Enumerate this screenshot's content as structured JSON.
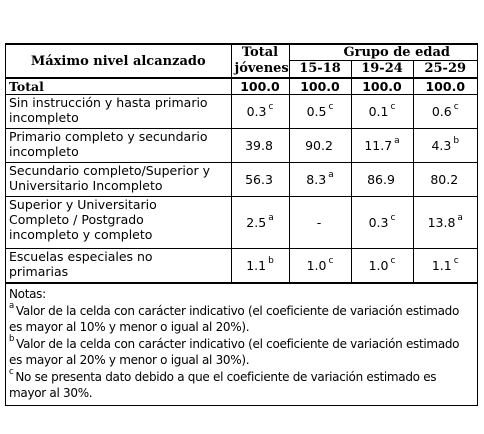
{
  "header": {
    "col_level": "Máximo nivel alcanzado",
    "col_total": "Total jóvenes",
    "col_group": "Grupo de edad",
    "ages": [
      "15-18",
      "19-24",
      "25-29"
    ]
  },
  "total_row": {
    "label": "Total",
    "values": [
      "100.0",
      "100.0",
      "100.0",
      "100.0"
    ]
  },
  "rows": [
    {
      "label": "Sin instrucción y hasta primario incompleto",
      "values": [
        {
          "v": "0.3",
          "s": "c"
        },
        {
          "v": "0.5",
          "s": "c"
        },
        {
          "v": "0.1",
          "s": "c"
        },
        {
          "v": "0.6",
          "s": "c"
        }
      ]
    },
    {
      "label": "Primario completo y secundario incompleto",
      "values": [
        {
          "v": "39.8",
          "s": ""
        },
        {
          "v": "90.2",
          "s": ""
        },
        {
          "v": "11.7",
          "s": "a"
        },
        {
          "v": "4.3",
          "s": "b"
        }
      ]
    },
    {
      "label": "Secundario completo/Superior y Universitario Incompleto",
      "values": [
        {
          "v": "56.3",
          "s": ""
        },
        {
          "v": "8.3",
          "s": "a"
        },
        {
          "v": "86.9",
          "s": ""
        },
        {
          "v": "80.2",
          "s": ""
        }
      ]
    },
    {
      "label": "Superior y Universitario Completo / Postgrado incompleto y completo",
      "values": [
        {
          "v": "2.5",
          "s": "a"
        },
        {
          "v": "-",
          "s": ""
        },
        {
          "v": "0.3",
          "s": "c"
        },
        {
          "v": "13.8",
          "s": "a"
        }
      ]
    },
    {
      "label": "Escuelas especiales no primarias",
      "values": [
        {
          "v": "1.1",
          "s": "b"
        },
        {
          "v": "1.0",
          "s": "c"
        },
        {
          "v": "1.0",
          "s": "c"
        },
        {
          "v": "1.1",
          "s": "c"
        }
      ]
    }
  ],
  "notes": {
    "title": "Notas:",
    "a_mark": "a",
    "a_text": "Valor de la celda con carácter indicativo (el coeficiente de variación estimado es mayor al 10% y menor o igual al 20%).",
    "b_mark": "b",
    "b_text": "Valor de la celda con carácter indicativo (el coeficiente de variación estimado es mayor al 20% y menor o igual al 30%).",
    "c_mark": "c",
    "c_text": "No se presenta dato debido a que el coeficiente de variación estimado es mayor al 30%."
  }
}
